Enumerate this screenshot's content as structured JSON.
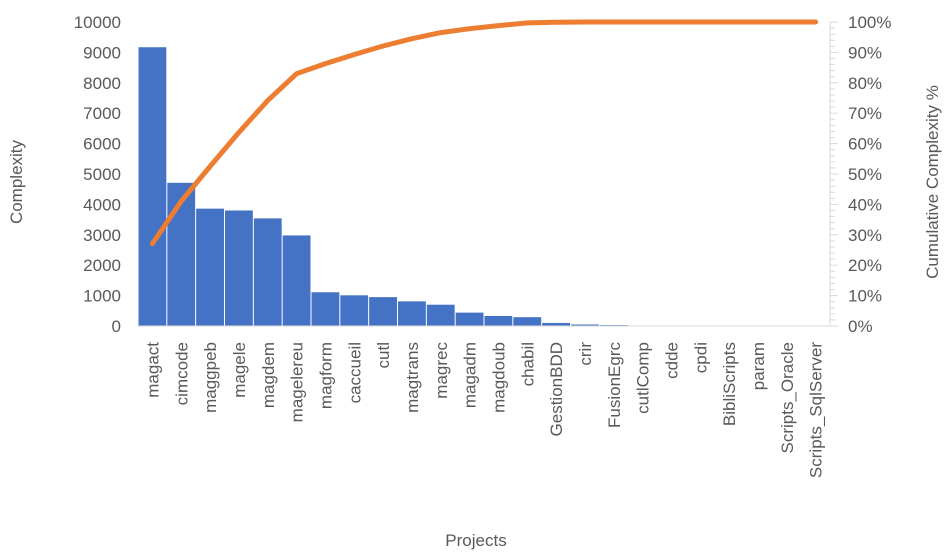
{
  "chart_data": {
    "type": "bar",
    "title": "",
    "xlabel": "Projects",
    "ylabel": "Complexity",
    "y2label": "Cumulative Complexity %",
    "ylim": [
      0,
      10000
    ],
    "y2lim": [
      0,
      100
    ],
    "yticks": [
      "0",
      "1000",
      "2000",
      "3000",
      "4000",
      "5000",
      "6000",
      "7000",
      "8000",
      "9000",
      "10000"
    ],
    "y2ticks": [
      "0%",
      "10%",
      "20%",
      "30%",
      "40%",
      "50%",
      "60%",
      "70%",
      "80%",
      "90%",
      "100%"
    ],
    "categories": [
      "magact",
      "cimcode",
      "maggpeb",
      "magele",
      "magdem",
      "magelereu",
      "magform",
      "caccueil",
      "cutl",
      "magtrans",
      "magrec",
      "magadm",
      "magdoub",
      "chabil",
      "GestionBDD",
      "crir",
      "FusionEgrc",
      "cutlComp",
      "cdde",
      "cpdi",
      "BibliScripts",
      "param",
      "Scripts_Oracle",
      "Scripts_SqlServer"
    ],
    "series": [
      {
        "type": "bar",
        "color": "#4472C4",
        "values": [
          9170,
          4710,
          3860,
          3800,
          3540,
          2980,
          1110,
          1010,
          950,
          810,
          700,
          440,
          330,
          290,
          100,
          50,
          30,
          10,
          5,
          5,
          3,
          2,
          1,
          1
        ]
      },
      {
        "type": "line",
        "axis": "secondary",
        "color": "#ED7D31",
        "values": [
          27.1,
          41.1,
          52.5,
          63.7,
          74.2,
          83.0,
          86.3,
          89.3,
          92.1,
          94.5,
          96.5,
          97.8,
          98.8,
          99.7,
          99.9,
          100.0,
          100.0,
          100.0,
          100.0,
          100.0,
          100.0,
          100.0,
          100.0,
          100.0
        ]
      }
    ],
    "grid": false,
    "legend": "none"
  }
}
